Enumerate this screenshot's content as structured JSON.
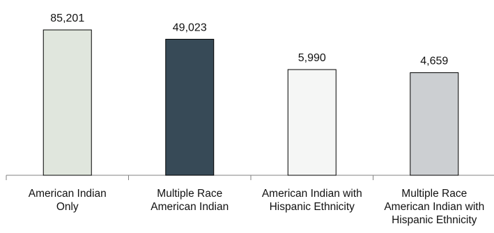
{
  "chart_data": {
    "type": "bar",
    "categories": [
      [
        "American Indian",
        "Only"
      ],
      [
        "Multiple Race",
        "American Indian"
      ],
      [
        "American Indian with",
        "Hispanic Ethnicity"
      ],
      [
        "Multiple Race",
        "American Indian with",
        "Hispanic Ethnicity"
      ]
    ],
    "values": [
      85201,
      49023,
      5990,
      4659
    ],
    "data_labels": [
      "85,201",
      "49,023",
      "5,990",
      "4,659"
    ],
    "bar_colors": [
      "#e0e6dd",
      "#374a57",
      "#f5f6f5",
      "#cccfd2"
    ],
    "bar_stroke": "#000000",
    "axis_color": "#808080",
    "title": "",
    "xlabel": "",
    "ylabel": "",
    "y_axis_shown": false,
    "grid": false,
    "legend": "none",
    "value_scale": "non-linear (bar heights not proportional to values)"
  }
}
